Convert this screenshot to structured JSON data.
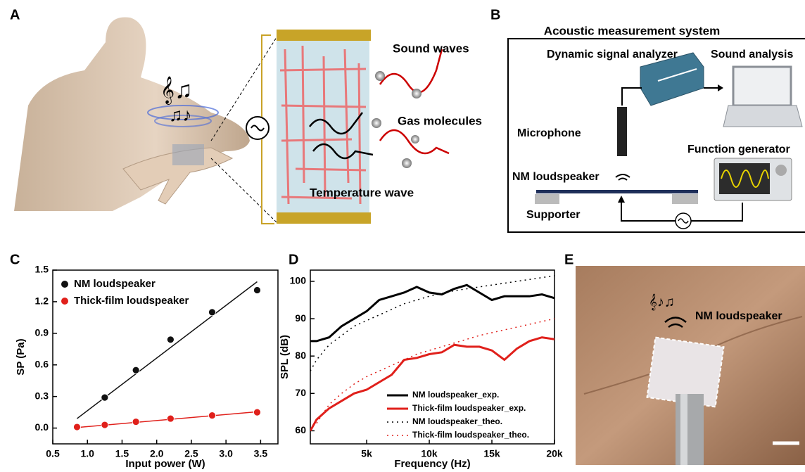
{
  "panels": {
    "a": {
      "label": "A",
      "sound": "Sound waves",
      "gas": "Gas molecules",
      "temp": "Temperature wave"
    },
    "b": {
      "label": "B",
      "title": "Acoustic measurement system",
      "analyzer": "Dynamic signal analyzer",
      "analysis": "Sound analysis",
      "mic": "Microphone",
      "generator": "Function generator",
      "speaker": "NM loudspeaker",
      "supporter": "Supporter"
    },
    "c": {
      "label": "C"
    },
    "d": {
      "label": "D"
    },
    "e": {
      "label": "E",
      "speaker": "NM loudspeaker"
    }
  },
  "chart_data": [
    {
      "type": "scatter",
      "x_label": "Input power (W)",
      "y_label": "SP (Pa)",
      "xlim": [
        0.5,
        3.75
      ],
      "ylim": [
        -0.15,
        1.5
      ],
      "xticks": [
        0.5,
        {
          "value": 1,
          "label": "1.0"
        },
        1.5,
        {
          "value": 2,
          "label": "2.0"
        },
        2.5,
        {
          "value": 3,
          "label": "3.0"
        },
        3.5
      ],
      "yticks": [
        {
          "value": 0,
          "label": "0.0"
        },
        0.3,
        0.6,
        0.9,
        1.2,
        1.5
      ],
      "legend": "upper left",
      "series": [
        {
          "name": "NM loudspeaker",
          "color": "#111111",
          "x": [
            1.25,
            1.7,
            2.2,
            2.8,
            3.45
          ],
          "values": [
            0.29,
            0.55,
            0.84,
            1.1,
            1.31
          ],
          "fit": {
            "x": [
              0.85,
              3.45
            ],
            "values": [
              0.09,
              1.39
            ]
          }
        },
        {
          "name": "Thick-film loudspeaker",
          "color": "#e0201b",
          "x": [
            0.85,
            1.25,
            1.7,
            2.2,
            2.8,
            3.45
          ],
          "values": [
            0.01,
            0.03,
            0.06,
            0.09,
            0.12,
            0.15
          ],
          "fit": {
            "x": [
              0.85,
              3.45
            ],
            "values": [
              0.005,
              0.155
            ]
          }
        }
      ]
    },
    {
      "type": "line",
      "x_label": "Frequency (Hz)",
      "y_label": "SPL (dB)",
      "xlim": [
        500,
        20000
      ],
      "ylim": [
        56.5,
        103
      ],
      "xticks": [
        {
          "value": 5000,
          "label": "5k"
        },
        {
          "value": 10000,
          "label": "10k"
        },
        {
          "value": 15000,
          "label": "15k"
        },
        {
          "value": 20000,
          "label": "20k"
        }
      ],
      "yticks": [
        60,
        70,
        80,
        90,
        100
      ],
      "legend": "lower right",
      "series": [
        {
          "name": "NM loudspeaker_exp.",
          "color": "#000000",
          "dash": "solid",
          "x": [
            500,
            1000,
            2000,
            3000,
            4000,
            5000,
            6000,
            7000,
            8000,
            9000,
            10000,
            11000,
            12000,
            13000,
            14000,
            15000,
            16000,
            17000,
            18000,
            19000,
            20000
          ],
          "values": [
            84,
            84,
            85,
            88,
            90,
            92,
            95,
            96,
            97,
            98.5,
            97,
            96.5,
            98,
            99,
            97,
            95,
            96,
            96,
            96,
            96.5,
            95.5
          ]
        },
        {
          "name": "Thick-film loudspeaker_exp.",
          "color": "#e0201b",
          "dash": "solid",
          "x": [
            500,
            1000,
            2000,
            3000,
            4000,
            5000,
            6000,
            7000,
            8000,
            9000,
            10000,
            11000,
            12000,
            13000,
            14000,
            15000,
            16000,
            17000,
            18000,
            19000,
            20000
          ],
          "values": [
            60,
            63,
            66,
            68,
            70,
            71,
            73,
            75,
            79,
            79.5,
            80.5,
            81,
            83,
            82.5,
            82.5,
            81.5,
            79,
            82,
            84,
            85,
            84.5
          ]
        },
        {
          "name": "NM loudspeaker_theo.",
          "color": "#000000",
          "dash": "dot",
          "x": [
            500,
            1000,
            2000,
            3000,
            4000,
            5000,
            6000,
            7000,
            8000,
            9000,
            10000,
            12000,
            14000,
            16000,
            18000,
            20000
          ],
          "values": [
            76,
            79,
            83,
            85.5,
            88,
            89.5,
            91,
            92.5,
            94,
            95,
            96,
            97.5,
            98.5,
            99.5,
            100.5,
            101.5
          ]
        },
        {
          "name": "Thick-film loudspeaker_theo.",
          "color": "#e0201b",
          "dash": "dot",
          "x": [
            1000,
            2000,
            3000,
            4000,
            5000,
            6000,
            7000,
            8000,
            9000,
            10000,
            12000,
            14000,
            16000,
            18000,
            20000
          ],
          "values": [
            62,
            67,
            70,
            72.5,
            74.5,
            76,
            77.5,
            79,
            80.5,
            81.5,
            83.5,
            85.5,
            87,
            88.5,
            90
          ]
        }
      ]
    }
  ]
}
